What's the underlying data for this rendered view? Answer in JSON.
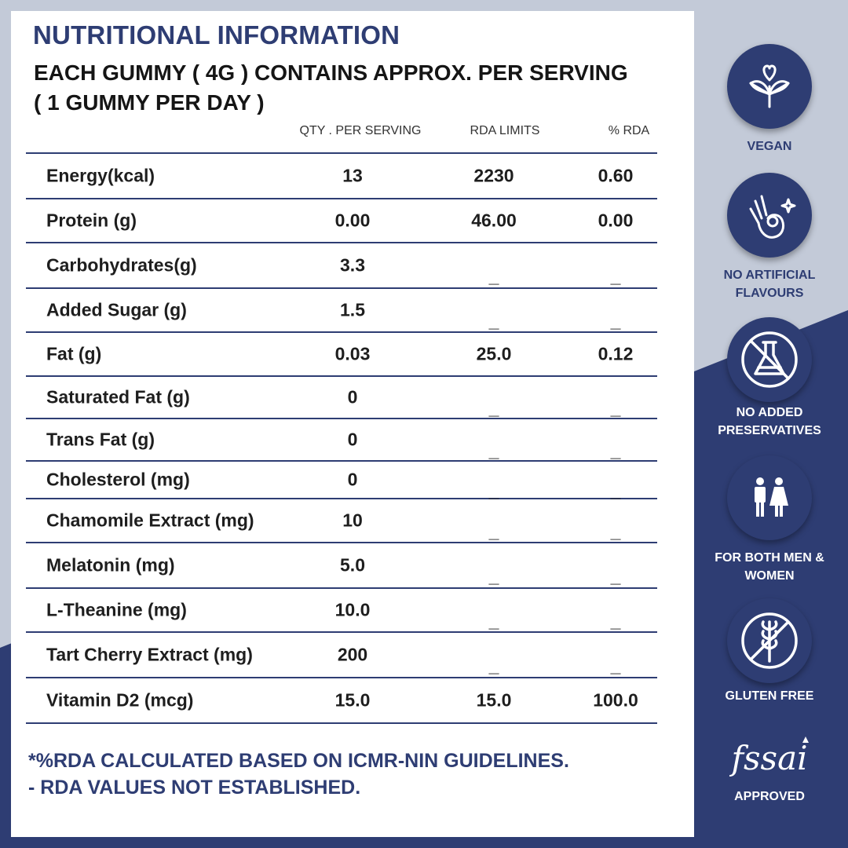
{
  "title": "NUTRITIONAL INFORMATION",
  "subtitle": "EACH GUMMY ( 4G ) CONTAINS APPROX. PER SERVING ( 1 GUMMY PER DAY )",
  "table": {
    "headers": {
      "qty": "QTY . PER SERVING",
      "rda": "RDA LIMITS",
      "pct": "% RDA"
    },
    "rows": [
      {
        "name": "Energy(kcal)",
        "qty": "13",
        "rda": "2230",
        "pct": "0.60"
      },
      {
        "name": "Protein (g)",
        "qty": "0.00",
        "rda": "46.00",
        "pct": "0.00"
      },
      {
        "name": "Carbohydrates(g)",
        "qty": "3.3",
        "rda": "_",
        "pct": "_"
      },
      {
        "name": "Added Sugar (g)",
        "qty": "1.5",
        "rda": "_",
        "pct": "_"
      },
      {
        "name": "Fat (g)",
        "qty": "0.03",
        "rda": "25.0",
        "pct": "0.12"
      },
      {
        "name": "Saturated Fat (g)",
        "qty": "0",
        "rda": "_",
        "pct": "_"
      },
      {
        "name": "Trans Fat (g)",
        "qty": "0",
        "rda": "_",
        "pct": "_"
      },
      {
        "name": "Cholesterol (mg)",
        "qty": "0",
        "rda": "_",
        "pct": "_"
      },
      {
        "name": "Chamomile Extract (mg)",
        "qty": "10",
        "rda": "_",
        "pct": "_"
      },
      {
        "name": "Melatonin (mg)",
        "qty": "5.0",
        "rda": "_",
        "pct": "_"
      },
      {
        "name": "L-Theanine (mg)",
        "qty": "10.0",
        "rda": "_",
        "pct": "_"
      },
      {
        "name": "Tart Cherry Extract (mg)",
        "qty": "200",
        "rda": "_",
        "pct": "_"
      },
      {
        "name": "Vitamin D2 (mcg)",
        "qty": "15.0",
        "rda": "15.0",
        "pct": "100.0"
      }
    ]
  },
  "footnote": {
    "line1": "*%RDA CALCULATED BASED ON ICMR-NIN GUIDELINES.",
    "line2": "- RDA VALUES NOT ESTABLISHED."
  },
  "badges": [
    {
      "icon": "vegan-leaf-icon",
      "label": "VEGAN"
    },
    {
      "icon": "no-artificial-flavours-hand-icon",
      "label": "NO ARTIFICIAL FLAVOURS"
    },
    {
      "icon": "no-preservatives-flask-icon",
      "label": "NO ADDED PRESERVATIVES"
    },
    {
      "icon": "men-women-icon",
      "label": "FOR BOTH MEN & WOMEN"
    },
    {
      "icon": "gluten-free-wheat-icon",
      "label": "GLUTEN FREE"
    }
  ],
  "certification": {
    "logo": "fssai",
    "label": "APPROVED"
  },
  "colors": {
    "navy": "#2e3d73",
    "light_bg": "#c3cad8",
    "text": "#1e1e1e"
  }
}
